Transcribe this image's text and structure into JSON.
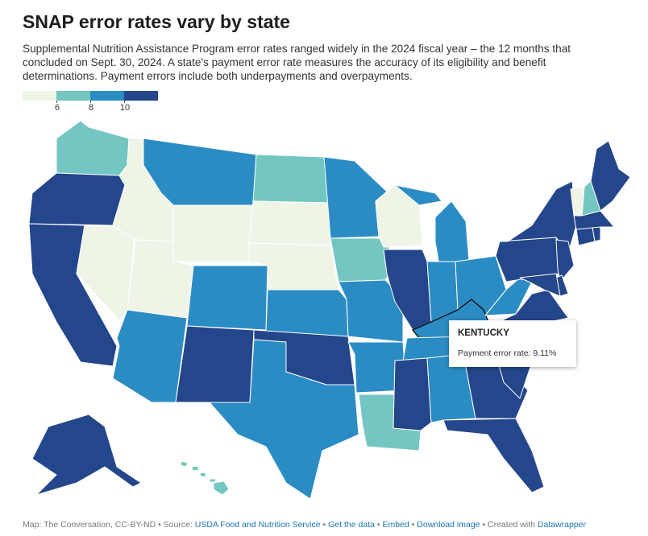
{
  "header": {
    "title": "SNAP error rates vary by state",
    "description": "Supplemental Nutrition Assistance Program error rates ranged widely in the 2024 fiscal year – the 12 months that concluded on Sept. 30, 2024. A state's payment error rate measures the accuracy of its eligibility and benefit determinations. Payment errors include both underpayments and overpayments."
  },
  "legend": {
    "ticks": [
      "6",
      "8",
      "10"
    ],
    "colors": [
      "#eef5e7",
      "#74c6c2",
      "#2b8cc4",
      "#24468a"
    ]
  },
  "tooltip": {
    "state": "KENTUCKY",
    "label": "Payment error rate: 9.11%"
  },
  "footer": {
    "map_credit": "Map: The Conversation, CC-BY-ND",
    "source_prefix": "• Source:",
    "source_link": "USDA Food and Nutrition Service",
    "get_data": "Get the data",
    "embed": "Embed",
    "download": "Download image",
    "created_prefix": "• Created with",
    "created_link": "Datawrapper"
  },
  "map": {
    "highlighted_state": "Kentucky",
    "classes": {
      "Washington": "teal",
      "Oregon": "navy",
      "California": "navy",
      "Nevada": "pale",
      "Idaho": "pale",
      "Montana": "blue",
      "Wyoming": "pale",
      "Utah": "pale",
      "Arizona": "blue",
      "Colorado": "blue",
      "New Mexico": "navy",
      "North Dakota": "teal",
      "South Dakota": "pale",
      "Nebraska": "pale",
      "Kansas": "blue",
      "Oklahoma": "navy",
      "Texas": "blue",
      "Minnesota": "blue",
      "Iowa": "teal",
      "Missouri": "blue",
      "Arkansas": "blue",
      "Louisiana": "teal",
      "Wisconsin": "pale",
      "Illinois": "navy",
      "Michigan": "blue",
      "Indiana": "blue",
      "Ohio": "blue",
      "Kentucky": "blue",
      "Tennessee": "blue",
      "Mississippi": "navy",
      "Alabama": "blue",
      "Georgia": "navy",
      "Florida": "navy",
      "South Carolina": "navy",
      "North Carolina": "blue",
      "Virginia": "navy",
      "West Virginia": "blue",
      "Pennsylvania": "navy",
      "New York": "navy",
      "Vermont": "pale",
      "New Hampshire": "teal",
      "Maine": "navy",
      "Massachusetts": "navy",
      "Connecticut": "navy",
      "Rhode Island": "navy",
      "New Jersey": "navy",
      "Delaware": "navy",
      "Maryland": "navy",
      "Alaska": "navy",
      "Hawaii": "teal"
    }
  }
}
